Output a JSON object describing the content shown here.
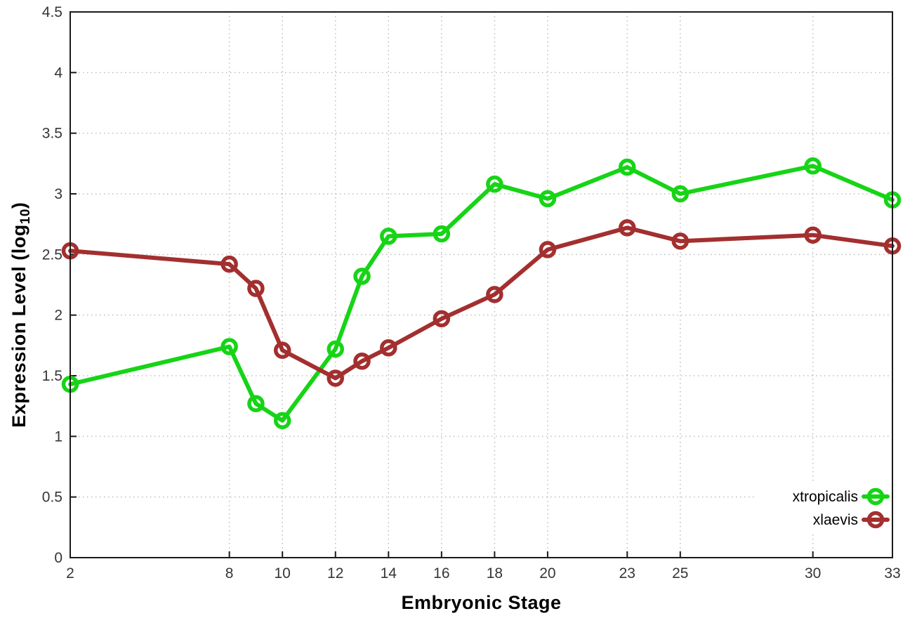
{
  "chart_data": {
    "type": "line",
    "x": [
      2,
      8,
      9,
      10,
      12,
      13,
      14,
      16,
      18,
      20,
      23,
      25,
      30,
      33
    ],
    "series": [
      {
        "name": "xtropicalis",
        "color": "#16d416",
        "values": [
          1.43,
          1.74,
          1.27,
          1.13,
          1.72,
          2.32,
          2.65,
          2.67,
          3.08,
          2.96,
          3.22,
          3.0,
          3.23,
          2.95
        ]
      },
      {
        "name": "xlaevis",
        "color": "#a32f2f",
        "values": [
          2.53,
          2.42,
          2.22,
          1.71,
          1.48,
          1.62,
          1.73,
          1.97,
          2.17,
          2.54,
          2.72,
          2.61,
          2.66,
          2.57
        ]
      }
    ],
    "title": "",
    "xlabel": "Embryonic Stage",
    "ylabel": "Expression Level (log10)",
    "ylabel_parts": {
      "main": "Expression Level (log",
      "sub": "10",
      "end": ")"
    },
    "xticks": [
      2,
      8,
      10,
      12,
      14,
      16,
      18,
      20,
      23,
      25,
      30,
      33
    ],
    "yticks": [
      0,
      0.5,
      1,
      1.5,
      2,
      2.5,
      3,
      3.5,
      4,
      4.5
    ],
    "xlim": [
      2,
      33
    ],
    "ylim": [
      0,
      4.5
    ],
    "grid": true,
    "legend_position": "bottom-right"
  },
  "colors": {
    "grid": "#bdbdbd",
    "axis": "#1a1a1a",
    "tick_label": "#363636",
    "legend_text": "#000000",
    "background": "#ffffff"
  }
}
